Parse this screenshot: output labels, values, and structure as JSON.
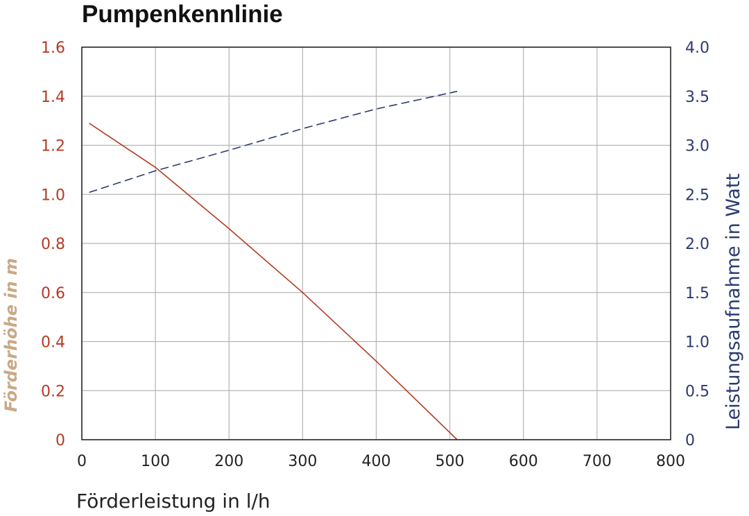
{
  "chart_data": {
    "type": "line",
    "title": "Pumpenkennlinie",
    "xlabel": "Förderleistung in l/h",
    "ylabel_left": "Förderhöhe in m",
    "ylabel_right": "Leistungsaufnahme in Watt",
    "xlim": [
      0,
      800
    ],
    "ylim_left": [
      0,
      1.6
    ],
    "ylim_right": [
      0,
      4.0
    ],
    "x_ticks": [
      "0",
      "100",
      "200",
      "300",
      "400",
      "500",
      "600",
      "700",
      "800"
    ],
    "y_left_ticks": [
      "0",
      "0.2",
      "0.4",
      "0.6",
      "0.8",
      "1.0",
      "1.2",
      "1.4",
      "1.6"
    ],
    "y_right_ticks": [
      "0",
      "0.5",
      "1.0",
      "1.5",
      "2.0",
      "2.5",
      "3.0",
      "3.5",
      "4.0"
    ],
    "grid": true,
    "series": [
      {
        "axis": "left",
        "style": "solid",
        "color": "#b53a22",
        "x": [
          10,
          100,
          200,
          300,
          400,
          510
        ],
        "y": [
          1.29,
          1.11,
          0.86,
          0.6,
          0.32,
          0.0
        ]
      },
      {
        "axis": "right",
        "style": "dashed",
        "color": "#2a3a70",
        "x": [
          10,
          100,
          200,
          300,
          400,
          510
        ],
        "y": [
          2.52,
          2.74,
          2.95,
          3.17,
          3.37,
          3.55
        ]
      }
    ]
  }
}
